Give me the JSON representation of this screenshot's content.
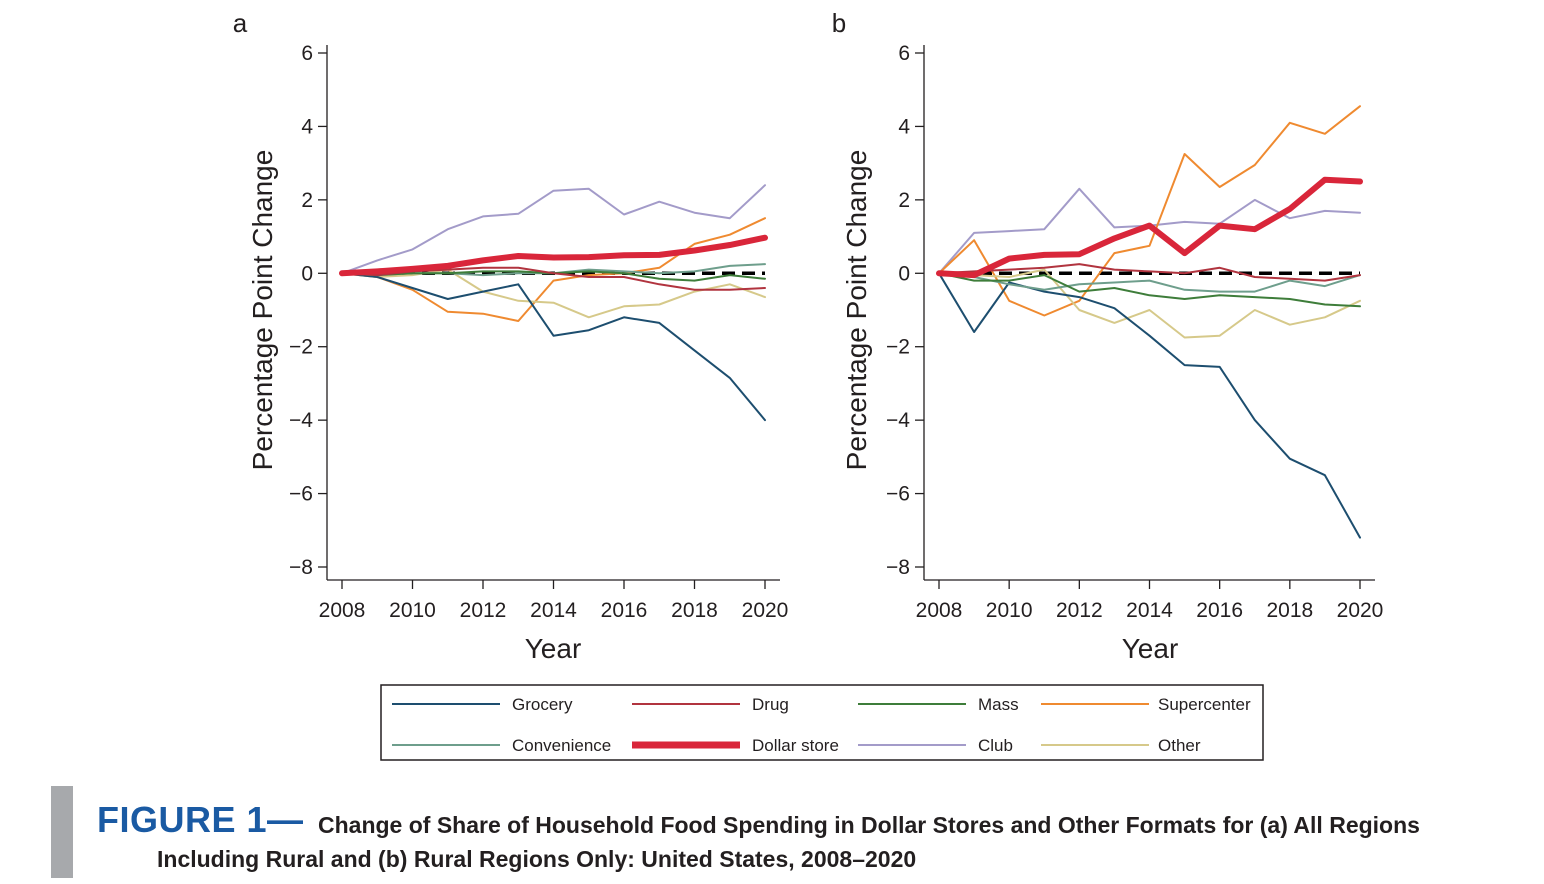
{
  "chart_data": [
    {
      "panel": "a",
      "type": "line",
      "xlabel": "Year",
      "ylabel": "Percentage Point Change",
      "xlim": [
        2008,
        2020
      ],
      "ylim": [
        -8,
        6
      ],
      "xticks": [
        2008,
        2010,
        2012,
        2014,
        2016,
        2018,
        2020
      ],
      "yticks": [
        6,
        4,
        2,
        0,
        -2,
        -4,
        -6,
        -8
      ],
      "reference_line": 0,
      "x": [
        2008,
        2009,
        2010,
        2011,
        2012,
        2013,
        2014,
        2015,
        2016,
        2017,
        2018,
        2019,
        2020
      ],
      "series": [
        {
          "name": "Grocery",
          "values": [
            0,
            -0.1,
            -0.4,
            -0.7,
            -0.5,
            -0.3,
            -1.7,
            -1.55,
            -1.2,
            -1.35,
            -2.1,
            -2.85,
            -4.0
          ]
        },
        {
          "name": "Drug",
          "values": [
            0,
            -0.05,
            0.05,
            0.1,
            0.15,
            0.15,
            0.0,
            -0.1,
            -0.1,
            -0.3,
            -0.45,
            -0.45,
            -0.4
          ]
        },
        {
          "name": "Mass",
          "values": [
            0,
            -0.05,
            0.0,
            0.0,
            0.05,
            0.05,
            0.0,
            0.05,
            0.0,
            -0.15,
            -0.2,
            -0.05,
            -0.15
          ]
        },
        {
          "name": "Supercenter",
          "values": [
            0,
            -0.1,
            -0.45,
            -1.05,
            -1.1,
            -1.3,
            -0.2,
            -0.05,
            0.0,
            0.15,
            0.8,
            1.05,
            1.5
          ]
        },
        {
          "name": "Convenience",
          "values": [
            0,
            -0.05,
            0.0,
            0.0,
            -0.05,
            0.0,
            0.0,
            0.1,
            0.05,
            0.0,
            0.05,
            0.2,
            0.25
          ]
        },
        {
          "name": "Dollar store",
          "values": [
            0,
            0.05,
            0.12,
            0.2,
            0.35,
            0.47,
            0.43,
            0.44,
            0.49,
            0.5,
            0.62,
            0.77,
            0.97
          ]
        },
        {
          "name": "Club",
          "values": [
            0,
            0.35,
            0.65,
            1.2,
            1.55,
            1.62,
            2.25,
            2.3,
            1.6,
            1.95,
            1.65,
            1.5,
            2.4
          ]
        },
        {
          "name": "Other",
          "values": [
            0,
            -0.1,
            -0.05,
            0.1,
            -0.5,
            -0.75,
            -0.8,
            -1.2,
            -0.9,
            -0.85,
            -0.5,
            -0.3,
            -0.65
          ]
        }
      ]
    },
    {
      "panel": "b",
      "type": "line",
      "xlabel": "Year",
      "ylabel": "Percentage Point Change",
      "xlim": [
        2008,
        2020
      ],
      "ylim": [
        -8,
        6
      ],
      "xticks": [
        2008,
        2010,
        2012,
        2014,
        2016,
        2018,
        2020
      ],
      "yticks": [
        6,
        4,
        2,
        0,
        -2,
        -4,
        -6,
        -8
      ],
      "reference_line": 0,
      "x": [
        2008,
        2009,
        2010,
        2011,
        2012,
        2013,
        2014,
        2015,
        2016,
        2017,
        2018,
        2019,
        2020
      ],
      "series": [
        {
          "name": "Grocery",
          "values": [
            0,
            -1.6,
            -0.25,
            -0.5,
            -0.65,
            -0.95,
            -1.7,
            -2.5,
            -2.55,
            -4.0,
            -5.05,
            -5.5,
            -7.2
          ]
        },
        {
          "name": "Drug",
          "values": [
            0,
            0.05,
            0.1,
            0.15,
            0.25,
            0.1,
            0.05,
            0.0,
            0.15,
            -0.1,
            -0.15,
            -0.2,
            -0.05
          ]
        },
        {
          "name": "Mass",
          "values": [
            0,
            -0.2,
            -0.2,
            -0.05,
            -0.5,
            -0.4,
            -0.6,
            -0.7,
            -0.6,
            -0.65,
            -0.7,
            -0.85,
            -0.9
          ]
        },
        {
          "name": "Supercenter",
          "values": [
            0,
            0.9,
            -0.75,
            -1.15,
            -0.75,
            0.55,
            0.75,
            3.25,
            2.35,
            2.95,
            4.1,
            3.8,
            4.55
          ]
        },
        {
          "name": "Convenience",
          "values": [
            0,
            -0.1,
            -0.3,
            -0.45,
            -0.3,
            -0.25,
            -0.2,
            -0.45,
            -0.5,
            -0.5,
            -0.2,
            -0.35,
            -0.05
          ]
        },
        {
          "name": "Dollar store",
          "values": [
            0,
            -0.05,
            0.4,
            0.5,
            0.52,
            0.95,
            1.3,
            0.55,
            1.3,
            1.2,
            1.75,
            2.55,
            2.5
          ]
        },
        {
          "name": "Club",
          "values": [
            0,
            1.1,
            1.15,
            1.2,
            2.3,
            1.25,
            1.3,
            1.4,
            1.35,
            2.0,
            1.5,
            1.7,
            1.65
          ]
        },
        {
          "name": "Other",
          "values": [
            0,
            -0.05,
            -0.1,
            0.1,
            -1.0,
            -1.35,
            -1.0,
            -1.75,
            -1.7,
            -1.0,
            -1.4,
            -1.2,
            -0.75
          ]
        }
      ]
    }
  ],
  "legend": {
    "entries": [
      {
        "name": "Grocery",
        "color": "#1d4e6f",
        "width": 2
      },
      {
        "name": "Drug",
        "color": "#b1343f",
        "width": 2
      },
      {
        "name": "Mass",
        "color": "#3e7d3a",
        "width": 2
      },
      {
        "name": "Supercenter",
        "color": "#ef8a30",
        "width": 2
      },
      {
        "name": "Convenience",
        "color": "#6e9e8c",
        "width": 2
      },
      {
        "name": "Dollar store",
        "color": "#d9263a",
        "width": 6
      },
      {
        "name": "Club",
        "color": "#a39bc9",
        "width": 2
      },
      {
        "name": "Other",
        "color": "#d6c98a",
        "width": 2
      }
    ]
  },
  "caption": {
    "label": "FIGURE 1—",
    "line1": "Change of Share of Household Food Spending in Dollar Stores and Other Formats for (a) All Regions",
    "line2": "Including Rural and (b) Rural Regions Only: United States, 2008–2020"
  }
}
